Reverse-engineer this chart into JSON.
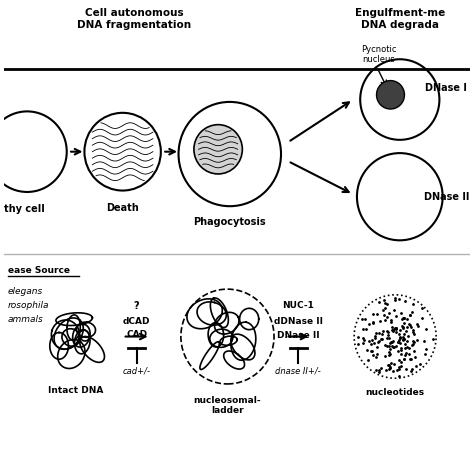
{
  "title_left": "Cell autonomous\nDNA fragmentation",
  "title_right": "Engulfment-me\nDNA degrada",
  "bg_color": "#ffffff",
  "text_color": "#000000",
  "label_healthy": "thy cell",
  "label_death": "Death",
  "label_phago": "Phagocytosis",
  "label_pycnotic": "Pycnotic\nnucleus",
  "label_dnase1": "DNase I",
  "label_dnase2": "DNase II",
  "label_nease_source": "ease Source",
  "label_elegans": "elegans",
  "label_drosophila": "rosophila",
  "label_mammals": "ammals",
  "label_dcad": "dCAD",
  "label_cad": "CAD",
  "label_question": "?",
  "label_nuc1": "NUC-1",
  "label_ddnase2": "dDNase II",
  "label_dnase2b": "DNase II",
  "label_cad_mut": "cad+/-",
  "label_dnase_mut": "dnase II+/-",
  "label_intact": "Intact DNA",
  "label_nucleo": "nucleosomal-\nladder",
  "label_nucleotides": "nucleotides"
}
